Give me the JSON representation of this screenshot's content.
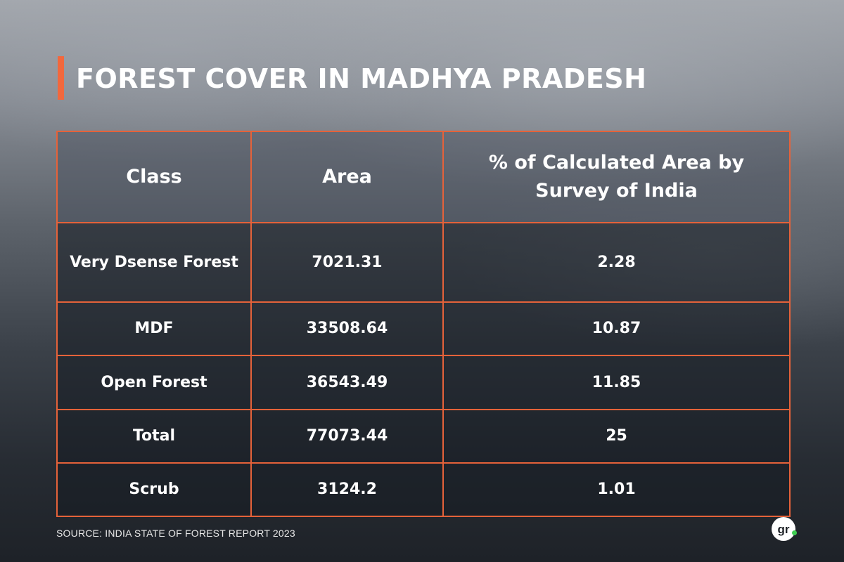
{
  "header": {
    "title": "FOREST COVER IN MADHYA PRADESH",
    "accent_color": "#f2683d"
  },
  "table": {
    "border_color": "#e5623a",
    "columns": [
      "Class",
      "Area",
      "% of Calculated Area by Survey of India"
    ],
    "rows": [
      {
        "class": "Very Dsense Forest",
        "area": "7021.31",
        "percent": "2.28"
      },
      {
        "class": "MDF",
        "area": "33508.64",
        "percent": "10.87"
      },
      {
        "class": "Open Forest",
        "area": "36543.49",
        "percent": "11.85"
      },
      {
        "class": "Total",
        "area": "77073.44",
        "percent": "25"
      },
      {
        "class": "Scrub",
        "area": "3124.2",
        "percent": "1.01"
      }
    ]
  },
  "footer": {
    "source": "SOURCE: INDIA STATE OF FOREST REPORT 2023",
    "logo_text": "gr",
    "logo_dot_color": "#3fce52"
  }
}
